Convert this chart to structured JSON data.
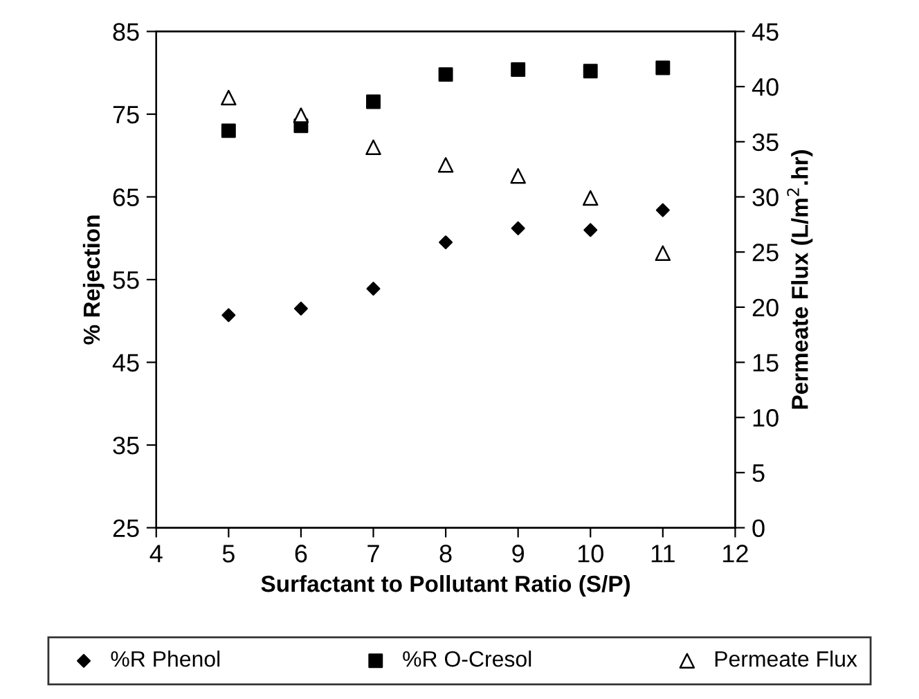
{
  "chart_data": {
    "type": "scatter",
    "xlabel": "Surfactant to Pollutant Ratio (S/P)",
    "ylabel": "% Rejection",
    "y2label": "Permeate Flux (L/m$^{2}$.hr)",
    "x": [
      5,
      6,
      7,
      8,
      9,
      10,
      11
    ],
    "series": [
      {
        "name": "%R Phenol",
        "color": "#000000",
        "marker": "diamond",
        "values": [
          50.7,
          51.5,
          53.9,
          59.5,
          61.2,
          61.0,
          63.4
        ]
      },
      {
        "name": "%R O-Cresol",
        "color": "#000000",
        "marker": "square",
        "values": [
          73.0,
          73.6,
          76.5,
          79.8,
          80.4,
          80.2,
          80.6
        ]
      },
      {
        "name": "Permeate Flux",
        "color": "#000000",
        "marker": "triangle",
        "axis": "y2",
        "values": [
          39.0,
          37.4,
          34.5,
          32.9,
          31.9,
          29.9,
          24.9
        ]
      }
    ],
    "xlim": [
      4,
      12
    ],
    "xticks": [
      4,
      5,
      6,
      7,
      8,
      9,
      10,
      11,
      12
    ],
    "ylim": [
      25,
      85
    ],
    "yticks": [
      25,
      35,
      45,
      55,
      65,
      75,
      85
    ],
    "y2lim": [
      0,
      45
    ],
    "y2ticks": [
      0,
      5,
      10,
      15,
      20,
      25,
      30,
      35,
      40,
      45
    ],
    "grid": false,
    "legend": "bottom"
  }
}
